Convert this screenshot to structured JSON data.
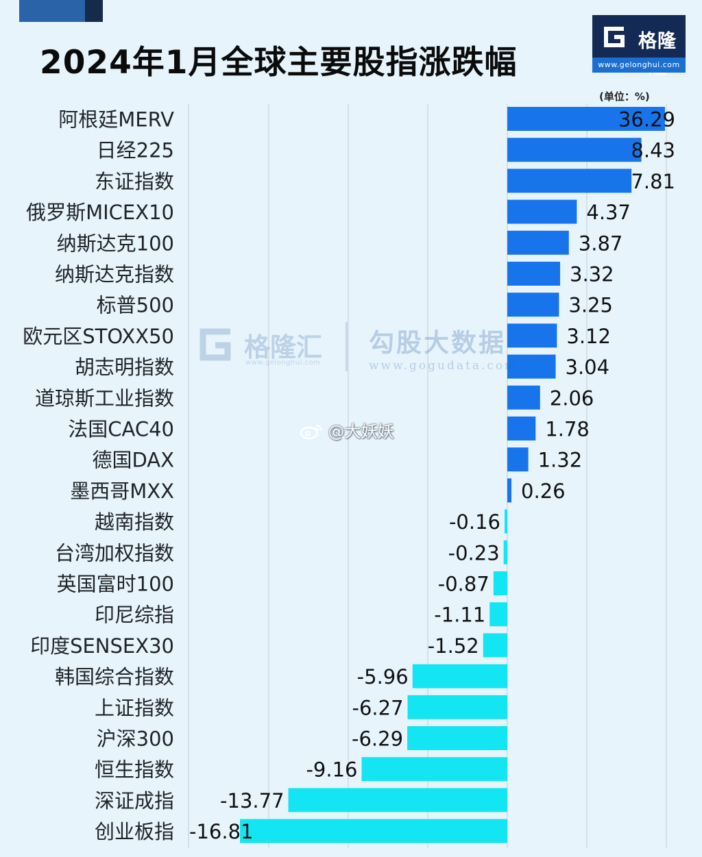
{
  "header": {
    "title": "2024年1月全球主要股指涨跌幅",
    "unit": "(单位：%)"
  },
  "brand": {
    "logo_name": "格隆汇",
    "logo_url": "www.gelonghui.com",
    "logo_color": "#122a54",
    "logo_url_color": "#1b6fd0"
  },
  "watermarks": {
    "gelonghui_name": "格隆汇",
    "gelonghui_url": "www.gelonghui.com",
    "gogu_name": "勾股大数据",
    "gogu_url": "www.gogudata.com",
    "weibo": "@大妖妖"
  },
  "chart_data": {
    "type": "bar",
    "orientation": "horizontal",
    "title": "2024年1月全球主要股指涨跌幅",
    "unit": "(单位：%)",
    "positive_color": "#1874eb",
    "negative_color": "#14e5f2",
    "categories": [
      "阿根廷MERV",
      "日经225",
      "东证指数",
      "俄罗斯MICEX10",
      "纳斯达克100",
      "纳斯达克指数",
      "标普500",
      "欧元区STOXX50",
      "胡志明指数",
      "道琼斯工业指数",
      "法国CAC40",
      "德国DAX",
      "墨西哥MXX",
      "越南指数",
      "台湾加权指数",
      "英国富时100",
      "印尼综指",
      "印度SENSEX30",
      "韩国综合指数",
      "上证指数",
      "沪深300",
      "恒生指数",
      "深证成指",
      "创业板指"
    ],
    "values": [
      36.29,
      8.43,
      7.81,
      4.37,
      3.87,
      3.32,
      3.25,
      3.12,
      3.04,
      2.06,
      1.78,
      1.32,
      0.26,
      -0.16,
      -0.23,
      -0.87,
      -1.11,
      -1.52,
      -5.96,
      -6.27,
      -6.29,
      -9.16,
      -13.77,
      -16.81
    ],
    "value_labels": [
      "36.29",
      "8.43",
      "7.81",
      "4.37",
      "3.87",
      "3.32",
      "3.25",
      "3.12",
      "3.04",
      "2.06",
      "1.78",
      "1.32",
      "0.26",
      "-0.16",
      "-0.23",
      "-0.87",
      "-1.11",
      "-1.52",
      "-5.96",
      "-6.27",
      "-6.29",
      "-9.16",
      "-13.77",
      "-16.81"
    ],
    "xlim": [
      -20,
      10
    ],
    "axis_break": true,
    "grid": true,
    "legend": "none"
  }
}
